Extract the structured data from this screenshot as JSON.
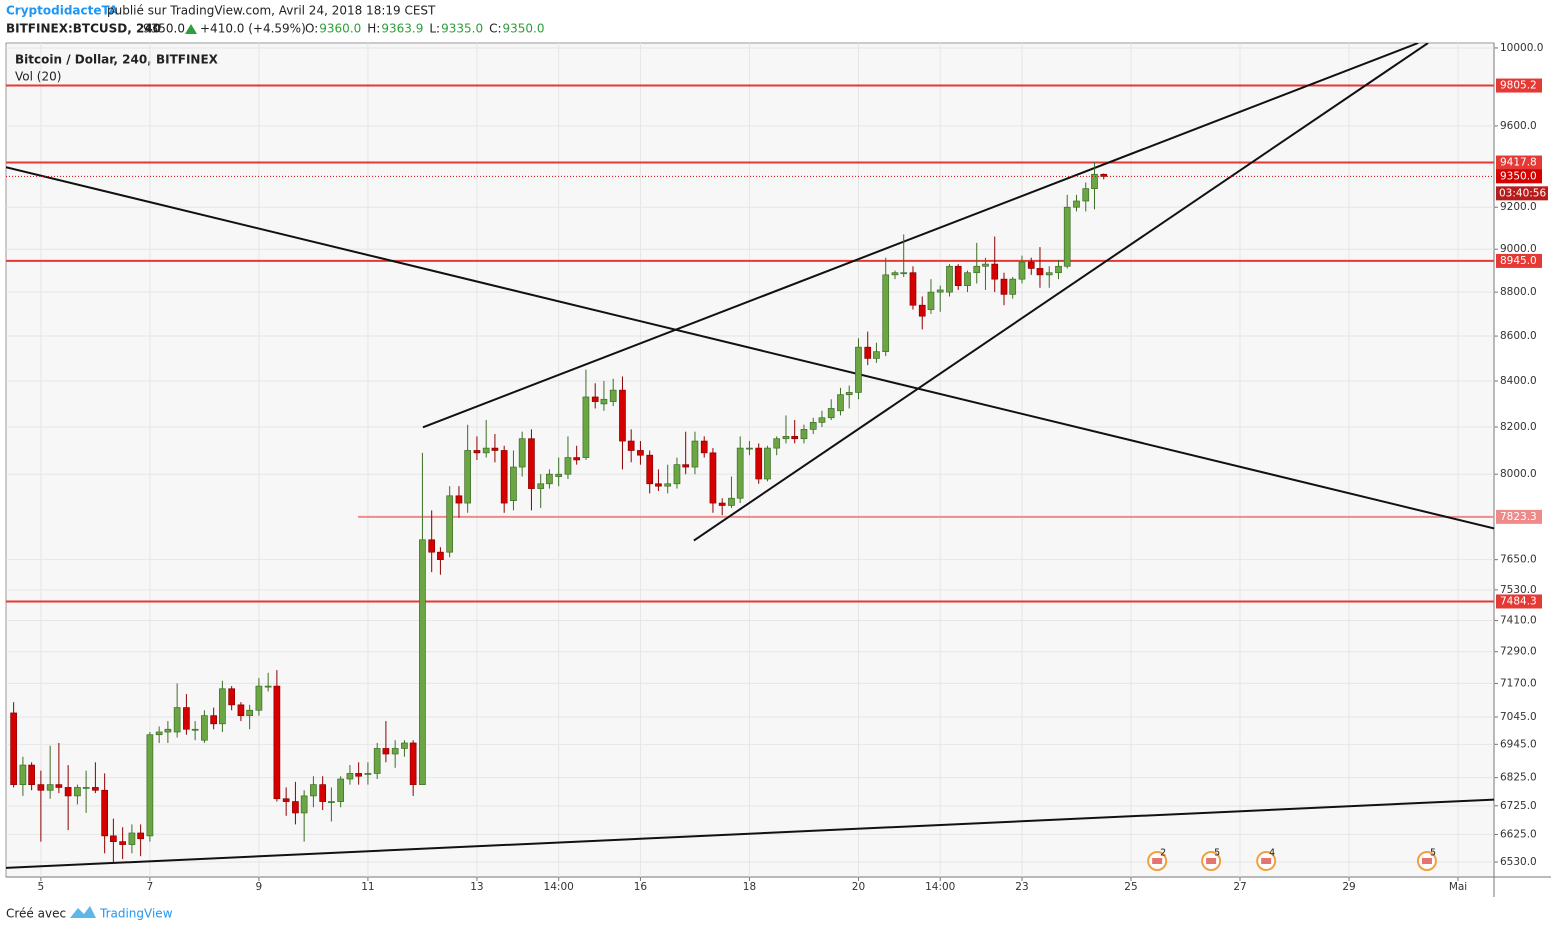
{
  "header": {
    "author": "CryptodidacteTA",
    "published": " publié sur TradingView.com, Avril 24, 2018 18:19 CEST",
    "symbol": "BITFINEX:BTCUSD, 240",
    "last": "9350.0",
    "change": "+410.0 (+4.59%)",
    "ohlc": [
      {
        "key": "O:",
        "value": "9360.0"
      },
      {
        "key": "H:",
        "value": "9363.9"
      },
      {
        "key": "L:",
        "value": "9335.0"
      },
      {
        "key": "C:",
        "value": "9350.0"
      }
    ]
  },
  "chart_data": {
    "type": "candlestick",
    "title": "Bitcoin / Dollar, 240, BITFINEX",
    "subtitle": "Vol (20)",
    "log_y": true,
    "grid": true,
    "up_color": "#6ba544",
    "down_color": "#d50000",
    "x": [
      4.5,
      4.67,
      4.83,
      5,
      5.17,
      5.33,
      5.5,
      5.67,
      5.83,
      6,
      6.17,
      6.33,
      6.5,
      6.67,
      6.83,
      7,
      7.17,
      7.33,
      7.5,
      7.67,
      7.83,
      8,
      8.17,
      8.33,
      8.5,
      8.67,
      8.83,
      9,
      9.17,
      9.33,
      9.5,
      9.67,
      9.83,
      10,
      10.17,
      10.33,
      10.5,
      10.67,
      10.83,
      11,
      11.17,
      11.33,
      11.5,
      11.67,
      11.83,
      12,
      12.17,
      12.33,
      12.5,
      12.67,
      12.83,
      13,
      13.17,
      13.33,
      13.5,
      13.67,
      13.83,
      14,
      14.17,
      14.33,
      14.5,
      14.67,
      14.83,
      15,
      15.17,
      15.33,
      15.5,
      15.67,
      15.83,
      16,
      16.17,
      16.33,
      16.5,
      16.67,
      16.83,
      17,
      17.17,
      17.33,
      17.5,
      17.67,
      17.83,
      18,
      18.17,
      18.33,
      18.5,
      18.67,
      18.83,
      19,
      19.17,
      19.33,
      19.5,
      19.67,
      19.83,
      20,
      20.17,
      20.33,
      20.5,
      20.67,
      20.83,
      21,
      21.17,
      21.33,
      21.5,
      21.67,
      21.83,
      22,
      22.17,
      22.33,
      22.5,
      22.67,
      22.83,
      23,
      23.17,
      23.33,
      23.5,
      23.67,
      23.83,
      24,
      24.17,
      24.33,
      24.5
    ],
    "open": [
      7060,
      6800,
      6870,
      6800,
      6780,
      6800,
      6790,
      6760,
      6790,
      6790,
      6780,
      6620,
      6600,
      6590,
      6630,
      6620,
      6980,
      6990,
      6990,
      7080,
      7000,
      6960,
      7050,
      7020,
      7150,
      7090,
      7050,
      7070,
      7160,
      7160,
      6750,
      6740,
      6700,
      6760,
      6800,
      6740,
      6740,
      6820,
      6840,
      6840,
      6840,
      6930,
      6910,
      6930,
      6950,
      6800,
      7730,
      7680,
      7680,
      7910,
      7880,
      8100,
      8090,
      8110,
      8100,
      7890,
      8030,
      8150,
      7940,
      7960,
      7990,
      8000,
      8070,
      8070,
      8330,
      8300,
      8310,
      8360,
      8140,
      8100,
      8080,
      7960,
      7950,
      7960,
      8040,
      8030,
      8140,
      8090,
      7880,
      7870,
      7900,
      8110,
      8110,
      7980,
      8110,
      8150,
      8160,
      8150,
      8190,
      8220,
      8240,
      8270,
      8340,
      8350,
      8550,
      8500,
      8530,
      8880,
      8890,
      8890,
      8740,
      8720,
      8800,
      8800,
      8920,
      8830,
      8890,
      8920,
      8930,
      8860,
      8790,
      8860,
      8940,
      8910,
      8880,
      8890,
      8920,
      9200,
      9230,
      9290,
      9360
    ],
    "high": [
      7100,
      6900,
      6880,
      6850,
      6940,
      6950,
      6870,
      6800,
      6850,
      6880,
      6840,
      6680,
      6650,
      6660,
      6660,
      6990,
      7010,
      7030,
      7170,
      7130,
      7030,
      7070,
      7080,
      7180,
      7160,
      7100,
      7090,
      7190,
      7210,
      7220,
      6790,
      6810,
      6780,
      6830,
      6830,
      6790,
      6830,
      6870,
      6880,
      6880,
      6950,
      7030,
      6960,
      6960,
      6960,
      8090,
      7850,
      7700,
      7950,
      7950,
      8210,
      8160,
      8230,
      8170,
      8120,
      8100,
      8180,
      8190,
      8000,
      8020,
      8070,
      8160,
      8120,
      8450,
      8390,
      8400,
      8410,
      8420,
      8190,
      8140,
      8100,
      8020,
      8040,
      8070,
      8180,
      8180,
      8160,
      8110,
      7900,
      7990,
      8160,
      8140,
      8130,
      8120,
      8160,
      8250,
      8230,
      8210,
      8240,
      8270,
      8320,
      8370,
      8380,
      8590,
      8620,
      8570,
      8960,
      8900,
      9070,
      8920,
      8780,
      8860,
      8830,
      8930,
      8930,
      8900,
      9030,
      8960,
      9060,
      8890,
      8870,
      8970,
      8960,
      9010,
      8920,
      8950,
      9260,
      9260,
      9320,
      9420,
      9364
    ],
    "low": [
      6790,
      6760,
      6780,
      6600,
      6750,
      6770,
      6640,
      6730,
      6700,
      6770,
      6560,
      6530,
      6540,
      6560,
      6550,
      6600,
      6950,
      6950,
      6970,
      6980,
      6960,
      6950,
      7000,
      6990,
      7070,
      7030,
      7000,
      7050,
      7140,
      6740,
      6690,
      6660,
      6600,
      6720,
      6710,
      6670,
      6720,
      6800,
      6800,
      6800,
      6820,
      6880,
      6860,
      6900,
      6760,
      6800,
      7600,
      7590,
      7660,
      7820,
      7840,
      8060,
      8070,
      8050,
      7840,
      7850,
      7990,
      7850,
      7860,
      7940,
      7950,
      7980,
      8040,
      8060,
      8280,
      8270,
      8290,
      8020,
      8050,
      8040,
      7920,
      7930,
      7920,
      7940,
      8000,
      8000,
      8070,
      7840,
      7830,
      7860,
      7880,
      8080,
      7960,
      7970,
      8080,
      8130,
      8130,
      8130,
      8170,
      8200,
      8230,
      8250,
      8280,
      8320,
      8470,
      8480,
      8510,
      8860,
      8870,
      8720,
      8630,
      8700,
      8710,
      8780,
      8810,
      8800,
      8840,
      8810,
      8800,
      8740,
      8770,
      8840,
      8880,
      8820,
      8820,
      8860,
      8910,
      9180,
      9180,
      9190,
      9335
    ],
    "close": [
      6800,
      6870,
      6800,
      6780,
      6800,
      6790,
      6760,
      6790,
      6790,
      6780,
      6620,
      6600,
      6590,
      6630,
      6610,
      6980,
      6990,
      7000,
      7080,
      7000,
      7000,
      7050,
      7020,
      7150,
      7090,
      7050,
      7070,
      7160,
      7160,
      6750,
      6740,
      6700,
      6760,
      6800,
      6740,
      6740,
      6820,
      6840,
      6830,
      6840,
      6930,
      6910,
      6930,
      6950,
      6800,
      7730,
      7680,
      7650,
      7910,
      7880,
      8100,
      8090,
      8110,
      8100,
      7880,
      8030,
      8150,
      7940,
      7960,
      8000,
      8000,
      8070,
      8060,
      8330,
      8310,
      8320,
      8360,
      8140,
      8100,
      8080,
      7960,
      7950,
      7960,
      8040,
      8030,
      8140,
      8090,
      7880,
      7870,
      7900,
      8110,
      8110,
      7980,
      8110,
      8150,
      8160,
      8150,
      8190,
      8220,
      8240,
      8280,
      8340,
      8350,
      8550,
      8500,
      8530,
      8880,
      8890,
      8890,
      8740,
      8690,
      8800,
      8810,
      8920,
      8830,
      8890,
      8920,
      8930,
      8860,
      8790,
      8860,
      8940,
      8910,
      8880,
      8890,
      8920,
      9200,
      9230,
      9290,
      9360,
      9350
    ],
    "xlim": [
      4.36,
      31.66
    ],
    "ylim": [
      6479,
      10026
    ],
    "xticks": [
      5,
      7,
      9,
      11,
      13,
      {
        "value": 14.5,
        "label": "14:00"
      },
      16,
      18,
      20,
      {
        "value": 21.5,
        "label": "14:00"
      },
      23,
      25,
      27,
      29,
      {
        "value": 31,
        "label": "Mai"
      }
    ],
    "yticks": [
      {
        "value": 6530,
        "label": "6530.0"
      },
      {
        "value": 6625,
        "label": "6625.0"
      },
      {
        "value": 6725,
        "label": "6725.0"
      },
      {
        "value": 6825,
        "label": "6825.0"
      },
      {
        "value": 6945,
        "label": "6945.0"
      },
      {
        "value": 7045,
        "label": "7045.0"
      },
      {
        "value": 7170,
        "label": "7170.0"
      },
      {
        "value": 7290,
        "label": "7290.0"
      },
      {
        "value": 7410,
        "label": "7410.0"
      },
      {
        "value": 7530,
        "label": "7530.0"
      },
      {
        "value": 7650,
        "label": "7650.0"
      },
      {
        "value": 8000,
        "label": "8000.0"
      },
      {
        "value": 8200,
        "label": "8200.0"
      },
      {
        "value": 8400,
        "label": "8400.0"
      },
      {
        "value": 8600,
        "label": "8600.0"
      },
      {
        "value": 8800,
        "label": "8800.0"
      },
      {
        "value": 9000,
        "label": "9000.0"
      },
      {
        "value": 9200,
        "label": "9200.0"
      },
      {
        "value": 9600,
        "label": "9600.0"
      },
      {
        "value": 10000,
        "label": "10000.0"
      }
    ],
    "levels": [
      {
        "value": 9805.2,
        "label": "9805.2",
        "color": "#e53935"
      },
      {
        "value": 9417.8,
        "label": "9417.8",
        "color": "#e53935"
      },
      {
        "value": 8945.0,
        "label": "8945.0",
        "color": "#e53935"
      },
      {
        "value": 7823.3,
        "label": "7823.3",
        "color": "#ef8a8a",
        "from": 10.82
      },
      {
        "value": 7484.3,
        "label": "7484.3",
        "color": "#e53935"
      }
    ],
    "last_price": {
      "value": 9350.0,
      "label": "9350.0",
      "countdown": "03:40:56",
      "color": "#d50000"
    },
    "trendlines": [
      {
        "x": [
          4.36,
          31.66
        ],
        "y": [
          9395,
          7776
        ]
      },
      {
        "x": [
          12.01,
          30.27
        ],
        "y": [
          8199,
          10026
        ]
      },
      {
        "x": [
          16.98,
          30.45
        ],
        "y": [
          7727,
          10026
        ]
      },
      {
        "x": [
          4.36,
          31.66
        ],
        "y": [
          6510,
          6747
        ]
      }
    ],
    "events": [
      {
        "x": 25.48,
        "count": 2
      },
      {
        "x": 26.47,
        "count": 5
      },
      {
        "x": 27.48,
        "count": 4
      },
      {
        "x": 30.43,
        "count": 5
      }
    ]
  },
  "footer": {
    "created": "Créé avec",
    "brand": "TradingView"
  }
}
